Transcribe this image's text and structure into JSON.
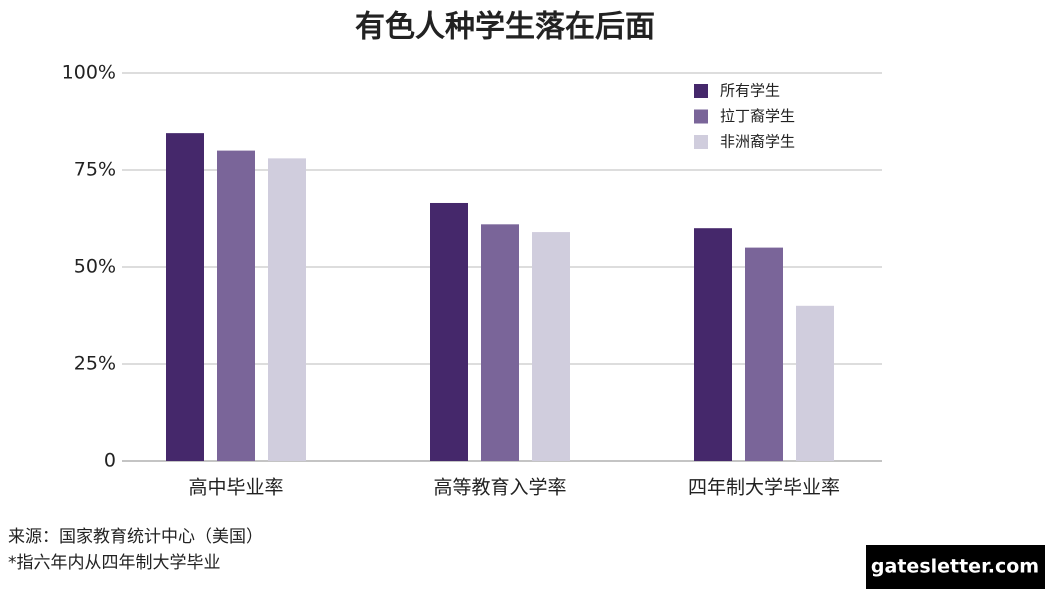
{
  "chart_data": {
    "type": "bar",
    "title": "有色人种学生落在后面",
    "categories": [
      "高中毕业率",
      "高等教育入学率",
      "四年制大学毕业率"
    ],
    "series": [
      {
        "name": "所有学生",
        "color": "#45286b",
        "values": [
          84.5,
          66.5,
          60
        ]
      },
      {
        "name": "拉丁裔学生",
        "color": "#7a6599",
        "values": [
          80,
          61,
          55
        ]
      },
      {
        "name": "非洲裔学生",
        "color": "#d0cddd",
        "values": [
          78,
          59,
          40
        ]
      }
    ],
    "ylim": [
      0,
      100
    ],
    "yticks": [
      0,
      {
        "value": 25,
        "label": "25%"
      },
      {
        "value": 50,
        "label": "50%"
      },
      {
        "value": 75,
        "label": "75%"
      },
      {
        "value": 100,
        "label": "100%"
      }
    ],
    "grid": true,
    "legend": "top-right"
  },
  "source": "来源：国家教育统计中心（美国）",
  "footnote": "*指六年内从四年制大学毕业",
  "brand": "gatesletter.com"
}
